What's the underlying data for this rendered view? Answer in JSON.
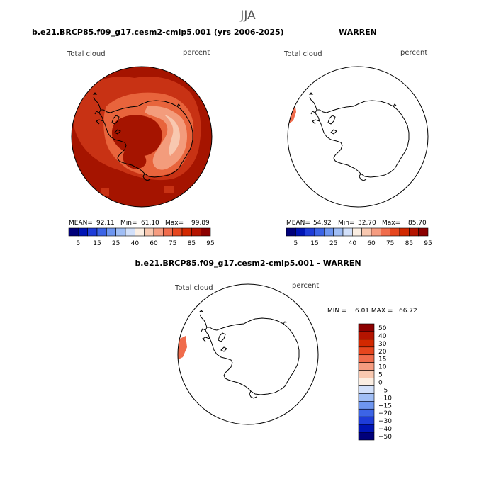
{
  "page_title": "JJA",
  "chart_data": [
    {
      "type": "polar-contour-map",
      "title": "b.e21.BRCP85.f09_g17.cesm2-cmip5.001 (yrs 2006-2025)",
      "left_label": "Total cloud",
      "right_label": "percent",
      "stats": {
        "mean_label": "MEAN=",
        "mean": "92.11",
        "min_label": "Min=",
        "min": "61.10",
        "max_label": "Max=",
        "max": "99.89"
      },
      "colorbar": {
        "orientation": "horizontal",
        "levels": [
          5,
          10,
          15,
          20,
          25,
          30,
          40,
          50,
          60,
          70,
          75,
          80,
          85,
          90,
          95
        ],
        "tick_labels": [
          "5",
          "15",
          "25",
          "40",
          "60",
          "75",
          "85",
          "95"
        ]
      }
    },
    {
      "type": "polar-contour-map",
      "title": "WARREN",
      "left_label": "Total cloud",
      "right_label": "percent",
      "stats": {
        "mean_label": "MEAN=",
        "mean": "54.92",
        "min_label": "Min=",
        "min": "32.70",
        "max_label": "Max=",
        "max": "85.70"
      },
      "colorbar": {
        "orientation": "horizontal",
        "levels": [
          5,
          10,
          15,
          20,
          25,
          30,
          40,
          50,
          60,
          70,
          75,
          80,
          85,
          90,
          95
        ],
        "tick_labels": [
          "5",
          "15",
          "25",
          "40",
          "60",
          "75",
          "85",
          "95"
        ]
      }
    },
    {
      "type": "polar-contour-map",
      "title": "b.e21.BRCP85.f09_g17.cesm2-cmip5.001 - WARREN",
      "left_label": "Total cloud",
      "right_label": "percent",
      "stats_line": "MIN =    6.01 MAX =   66.72",
      "colorbar": {
        "orientation": "vertical",
        "levels": [
          50,
          40,
          30,
          20,
          15,
          10,
          5,
          0,
          -5,
          -10,
          -15,
          -20,
          -30,
          -40,
          -50
        ],
        "tick_labels": [
          "50",
          "40",
          "30",
          "20",
          "15",
          "10",
          "5",
          "0",
          "−5",
          "−10",
          "−15",
          "−20",
          "−30",
          "−40",
          "−50"
        ]
      }
    }
  ],
  "colors": {
    "hbar": [
      "#00007a",
      "#0014b4",
      "#1e3cd8",
      "#3c64e6",
      "#6e96f0",
      "#a0bef5",
      "#d2e0fa",
      "#fbeee2",
      "#f8c8b0",
      "#f59c80",
      "#f06c4c",
      "#e6461e",
      "#d22800",
      "#b41400",
      "#8c0000"
    ],
    "vbar": [
      "#8c0000",
      "#b41400",
      "#d22800",
      "#e6461e",
      "#f06c4c",
      "#f59c80",
      "#f8c8b0",
      "#fbeee2",
      "#d2e0fa",
      "#a0bef5",
      "#6e96f0",
      "#3c64e6",
      "#1e3cd8",
      "#0014b4",
      "#00007a"
    ],
    "field_high": "#a51400",
    "field_mid": "#c83214",
    "field_low": "#e8643c",
    "field_lower": "#f39c7c",
    "field_lowest": "#f8c8b0",
    "patch": "#f06c4c",
    "coast": "#000000"
  }
}
